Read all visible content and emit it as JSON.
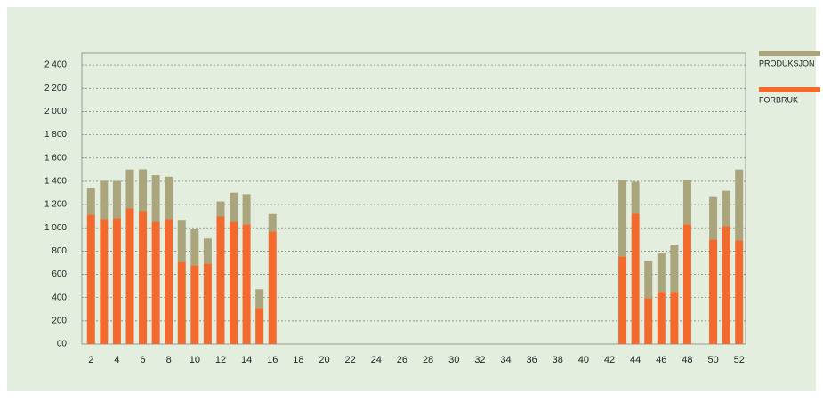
{
  "chart_data": {
    "type": "bar",
    "stacked": true,
    "categories": [
      "2",
      null,
      "4",
      null,
      "6",
      null,
      "8",
      null,
      "10",
      null,
      "12",
      null,
      "14",
      null,
      "16",
      null,
      "18",
      null,
      "20",
      null,
      "22",
      null,
      "24",
      null,
      "26",
      null,
      "28",
      null,
      "30",
      null,
      "32",
      null,
      "34",
      null,
      "36",
      null,
      "38",
      null,
      "40",
      null,
      "42",
      null,
      "44",
      null,
      "46",
      null,
      "48",
      null,
      "50",
      null,
      "52"
    ],
    "series": [
      {
        "name": "FORBRUK",
        "color": "#f26a2e",
        "values": [
          1112,
          1074,
          1082,
          1166,
          1143,
          1052,
          1074,
          709,
          678,
          693,
          1097,
          1052,
          1029,
          312,
          968,
          0,
          0,
          0,
          0,
          0,
          0,
          0,
          0,
          0,
          0,
          0,
          0,
          0,
          0,
          0,
          0,
          0,
          0,
          0,
          0,
          0,
          0,
          0,
          0,
          0,
          0,
          754,
          1120,
          396,
          450,
          450,
          1029,
          0,
          899,
          1013,
          891
        ]
      },
      {
        "name": "PRODUKSJON",
        "color": "#aba57e",
        "values": [
          230,
          330,
          320,
          335,
          360,
          400,
          365,
          360,
          310,
          215,
          130,
          250,
          260,
          160,
          150,
          0,
          0,
          0,
          0,
          0,
          0,
          0,
          0,
          0,
          0,
          0,
          0,
          0,
          0,
          0,
          0,
          0,
          0,
          0,
          0,
          0,
          0,
          0,
          0,
          0,
          0,
          660,
          275,
          320,
          335,
          405,
          380,
          0,
          365,
          305,
          610
        ]
      }
    ],
    "ylim": [
      0,
      2500
    ],
    "yticks": [
      {
        "value": 0,
        "label": "00"
      },
      200,
      400,
      600,
      800,
      {
        "value": 1000,
        "label": "1 000"
      },
      {
        "value": 1200,
        "label": "1 200"
      },
      {
        "value": 1400,
        "label": "1 400"
      },
      {
        "value": 1600,
        "label": "1 600"
      },
      {
        "value": 1800,
        "label": "1 800"
      },
      {
        "value": 2000,
        "label": "2 000"
      },
      {
        "value": 2200,
        "label": "2 200"
      },
      {
        "value": 2400,
        "label": "2 400"
      }
    ],
    "grid": true,
    "legend": "right"
  }
}
